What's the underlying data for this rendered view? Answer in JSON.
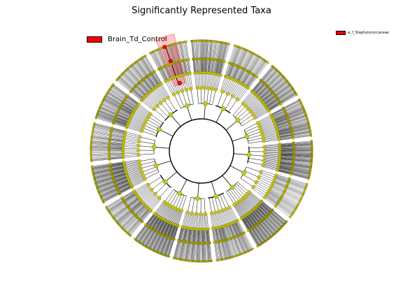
{
  "title": "Significantly Represented Taxa",
  "legend": {
    "class_label": "Brain_Td_Control",
    "class_color": "#ff0000",
    "taxa_entries": [
      "a: f_Staphylococcaceae"
    ]
  },
  "highlight": {
    "letter": "a",
    "color": "#ff0000"
  },
  "colors": {
    "node_fill": "#c8c814",
    "node_stroke": "#6b6b00",
    "branch": "#000000",
    "significant": "#ff0000"
  },
  "tree": {
    "levels": 6,
    "branches": [
      [
        5,
        4
      ],
      [
        5,
        3
      ],
      [
        6,
        3
      ],
      [
        4,
        4
      ],
      [
        6,
        4
      ],
      [
        7,
        3
      ],
      [
        5,
        5
      ],
      [
        4,
        3
      ],
      [
        8,
        4
      ],
      [
        6,
        3
      ],
      [
        5,
        4
      ],
      [
        7,
        4
      ],
      [
        4,
        5
      ],
      [
        6,
        4
      ],
      [
        5,
        3
      ],
      [
        7,
        3
      ]
    ]
  }
}
